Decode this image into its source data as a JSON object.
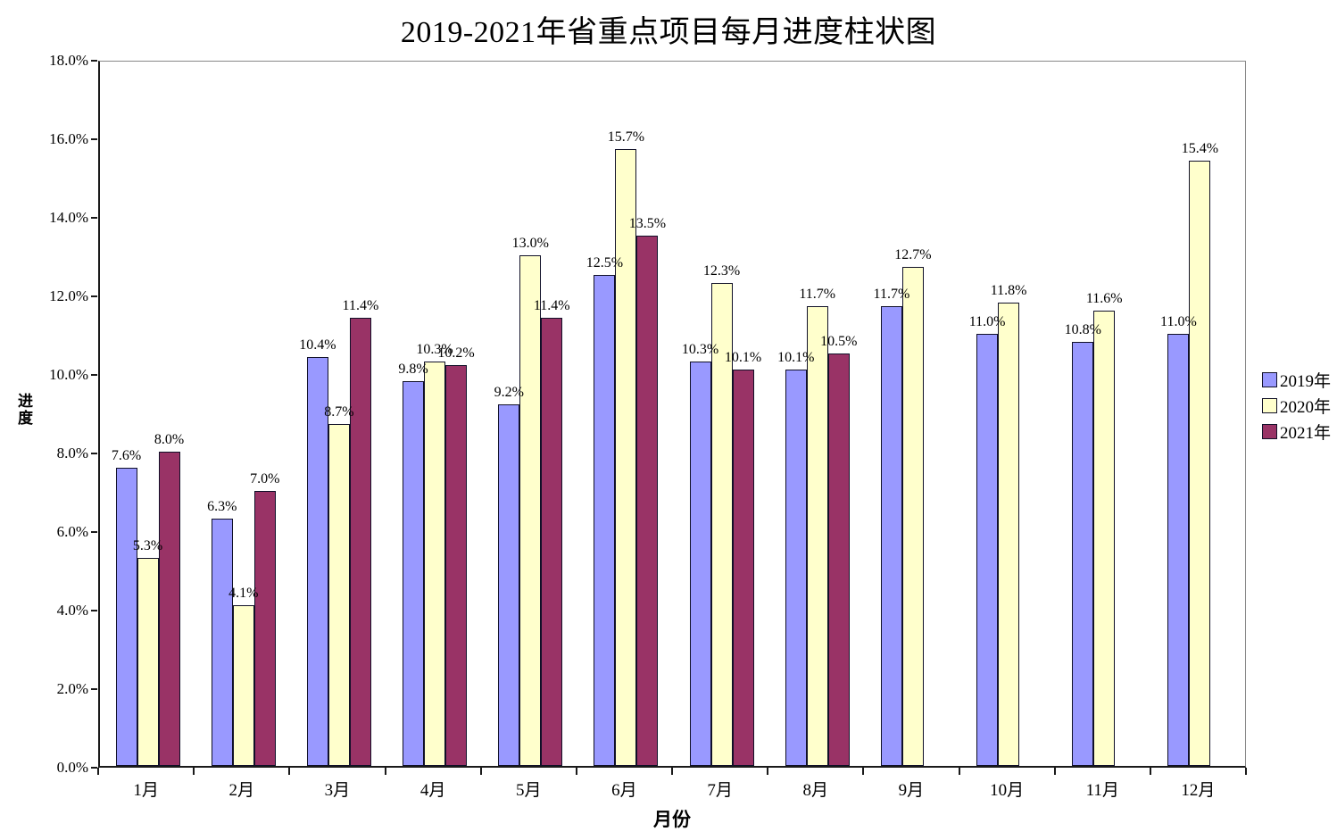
{
  "chart_data": {
    "type": "bar",
    "title": "2019-2021年省重点项目每月进度柱状图",
    "xlabel": "月份",
    "ylabel": "进度",
    "categories": [
      "1月",
      "2月",
      "3月",
      "4月",
      "5月",
      "6月",
      "7月",
      "8月",
      "9月",
      "10月",
      "11月",
      "12月"
    ],
    "series": [
      {
        "name": "2019年",
        "color": "#9999FF",
        "values": [
          7.6,
          6.3,
          10.4,
          9.8,
          9.2,
          12.5,
          10.3,
          10.1,
          11.7,
          11.0,
          10.8,
          11.0
        ]
      },
      {
        "name": "2020年",
        "color": "#FFFFCC",
        "values": [
          5.3,
          4.1,
          8.7,
          10.3,
          13.0,
          15.7,
          12.3,
          11.7,
          12.7,
          11.8,
          11.6,
          15.4
        ]
      },
      {
        "name": "2021年",
        "color": "#993366",
        "values": [
          8.0,
          7.0,
          11.4,
          10.2,
          11.4,
          13.5,
          10.1,
          10.5,
          null,
          null,
          null,
          null
        ]
      }
    ],
    "data_labels": true,
    "data_label_suffix": "%",
    "ylim": [
      0,
      18
    ],
    "ytick_labels": [
      "0.0%",
      "2.0%",
      "4.0%",
      "6.0%",
      "8.0%",
      "10.0%",
      "12.0%",
      "14.0%",
      "16.0%",
      "18.0%"
    ],
    "grid": false,
    "legend_position": "right",
    "plot_background": "#FFFFFF",
    "bar_border_color": "#101028"
  }
}
